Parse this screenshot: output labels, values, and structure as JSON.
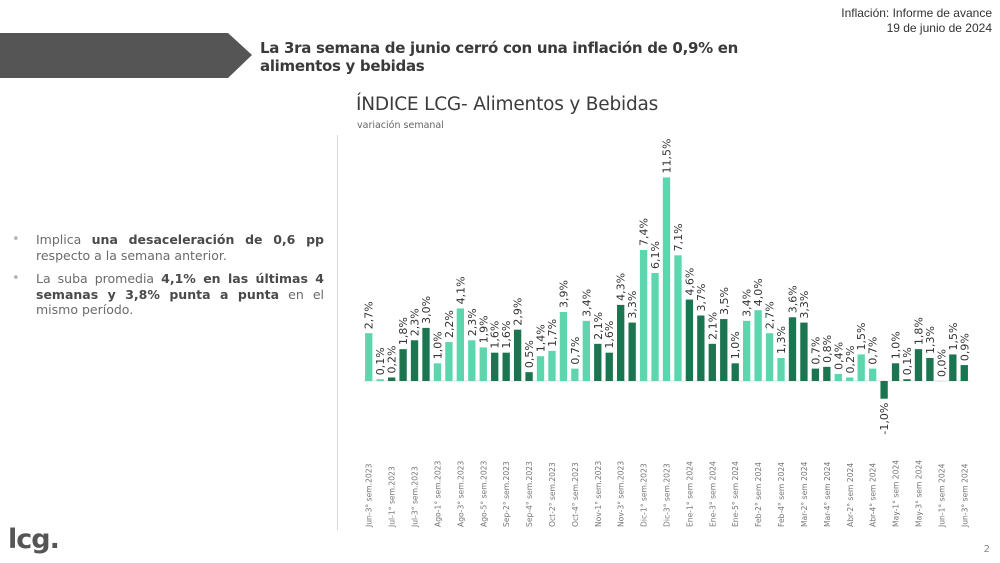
{
  "report_header": {
    "line1": "Inflación: Informe de avance",
    "line2": "19 de junio de 2024"
  },
  "headline": "La 3ra semana de junio cerró con una inflación de 0,9% en alimentos y bebidas",
  "bullets": [
    {
      "parts": [
        {
          "text": "Implica ",
          "bold": false
        },
        {
          "text": "una desaceleración de 0,6 pp",
          "bold": true
        },
        {
          "text": " respecto a la semana anterior.",
          "bold": false
        }
      ]
    },
    {
      "parts": [
        {
          "text": "La suba promedia ",
          "bold": false
        },
        {
          "text": "4,1% en las últimas 4 semanas y 3,8% punta a punta",
          "bold": true
        },
        {
          "text": " en el mismo período.",
          "bold": false
        }
      ]
    }
  ],
  "bullet_marker": "•",
  "logo": "lcg.",
  "page_number": "2",
  "colors": {
    "light_bar": "#5DD6AE",
    "dark_bar": "#1C7551",
    "banner": "#555555"
  },
  "chart_data": {
    "type": "bar",
    "title": "ÍNDICE LCG- Alimentos y Bebidas",
    "subtitle": "variación semanal",
    "xlabel": "",
    "ylabel": "",
    "grid": false,
    "legend": "none",
    "unit": "%",
    "ylim": [
      -2,
      12
    ],
    "bars": [
      {
        "label": "Jun-3° sem.2023",
        "value": 2.7,
        "shade": "light"
      },
      {
        "label": "",
        "value": 0.1,
        "shade": "light"
      },
      {
        "label": "Jul-1° sem.2023",
        "value": 0.2,
        "shade": "dark"
      },
      {
        "label": "",
        "value": 1.8,
        "shade": "dark"
      },
      {
        "label": "Jul-3° sem.2023",
        "value": 2.3,
        "shade": "dark"
      },
      {
        "label": "",
        "value": 3.0,
        "shade": "dark"
      },
      {
        "label": "Ago-1° sem.2023",
        "value": 1.0,
        "shade": "light"
      },
      {
        "label": "",
        "value": 2.2,
        "shade": "light"
      },
      {
        "label": "Ago-3° sem.2023",
        "value": 4.1,
        "shade": "light"
      },
      {
        "label": "",
        "value": 2.3,
        "shade": "light"
      },
      {
        "label": "Ago-5° sem.2023",
        "value": 1.9,
        "shade": "light"
      },
      {
        "label": "",
        "value": 1.6,
        "shade": "dark"
      },
      {
        "label": "Sep-2° sem.2023",
        "value": 1.6,
        "shade": "dark"
      },
      {
        "label": "",
        "value": 2.9,
        "shade": "dark"
      },
      {
        "label": "Sep-4° sem.2023",
        "value": 0.5,
        "shade": "dark"
      },
      {
        "label": "",
        "value": 1.4,
        "shade": "light"
      },
      {
        "label": "Oct-2° sem.2023",
        "value": 1.7,
        "shade": "light"
      },
      {
        "label": "",
        "value": 3.9,
        "shade": "light"
      },
      {
        "label": "Oct-4° sem.2023",
        "value": 0.7,
        "shade": "light"
      },
      {
        "label": "",
        "value": 3.4,
        "shade": "light"
      },
      {
        "label": "Nov-1° sem.2023",
        "value": 2.1,
        "shade": "dark"
      },
      {
        "label": "",
        "value": 1.6,
        "shade": "dark"
      },
      {
        "label": "Nov-3° sem.2023",
        "value": 4.3,
        "shade": "dark"
      },
      {
        "label": "",
        "value": 3.3,
        "shade": "dark"
      },
      {
        "label": "Dic-1° sem.2023",
        "value": 7.4,
        "shade": "light"
      },
      {
        "label": "",
        "value": 6.1,
        "shade": "light"
      },
      {
        "label": "Dic-3° sem.2023",
        "value": 11.5,
        "shade": "light"
      },
      {
        "label": "",
        "value": 7.1,
        "shade": "light"
      },
      {
        "label": "Ene-1° sem 2024",
        "value": 4.6,
        "shade": "dark"
      },
      {
        "label": "",
        "value": 3.7,
        "shade": "dark"
      },
      {
        "label": "Ene-3° sem 2024",
        "value": 2.1,
        "shade": "dark"
      },
      {
        "label": "",
        "value": 3.5,
        "shade": "dark"
      },
      {
        "label": "Ene-5° sem 2024",
        "value": 1.0,
        "shade": "dark"
      },
      {
        "label": "",
        "value": 3.4,
        "shade": "light"
      },
      {
        "label": "Feb-2° sem 2024",
        "value": 4.0,
        "shade": "light"
      },
      {
        "label": "",
        "value": 2.7,
        "shade": "light"
      },
      {
        "label": "Feb-4° sem 2024",
        "value": 1.3,
        "shade": "light"
      },
      {
        "label": "",
        "value": 3.6,
        "shade": "dark"
      },
      {
        "label": "Mar-2° sem 2024",
        "value": 3.3,
        "shade": "dark"
      },
      {
        "label": "",
        "value": 0.7,
        "shade": "dark"
      },
      {
        "label": "Mar-4° sem 2024",
        "value": 0.8,
        "shade": "dark"
      },
      {
        "label": "",
        "value": 0.4,
        "shade": "light"
      },
      {
        "label": "Abr-2° sem 2024",
        "value": 0.2,
        "shade": "light"
      },
      {
        "label": "",
        "value": 1.5,
        "shade": "light"
      },
      {
        "label": "Abr-4° sem 2024",
        "value": 0.7,
        "shade": "light"
      },
      {
        "label": "",
        "value": -1.0,
        "shade": "dark"
      },
      {
        "label": "May-1° sem 2024",
        "value": 1.0,
        "shade": "dark"
      },
      {
        "label": "",
        "value": 0.1,
        "shade": "dark"
      },
      {
        "label": "May-3° sem 2024",
        "value": 1.8,
        "shade": "dark"
      },
      {
        "label": "",
        "value": 1.3,
        "shade": "dark"
      },
      {
        "label": "Jun-1° sem 2024",
        "value": 0.0,
        "shade": "light"
      },
      {
        "label": "",
        "value": 1.5,
        "shade": "dark"
      },
      {
        "label": "Jun-3° sem 2024",
        "value": 0.9,
        "shade": "dark"
      }
    ]
  }
}
